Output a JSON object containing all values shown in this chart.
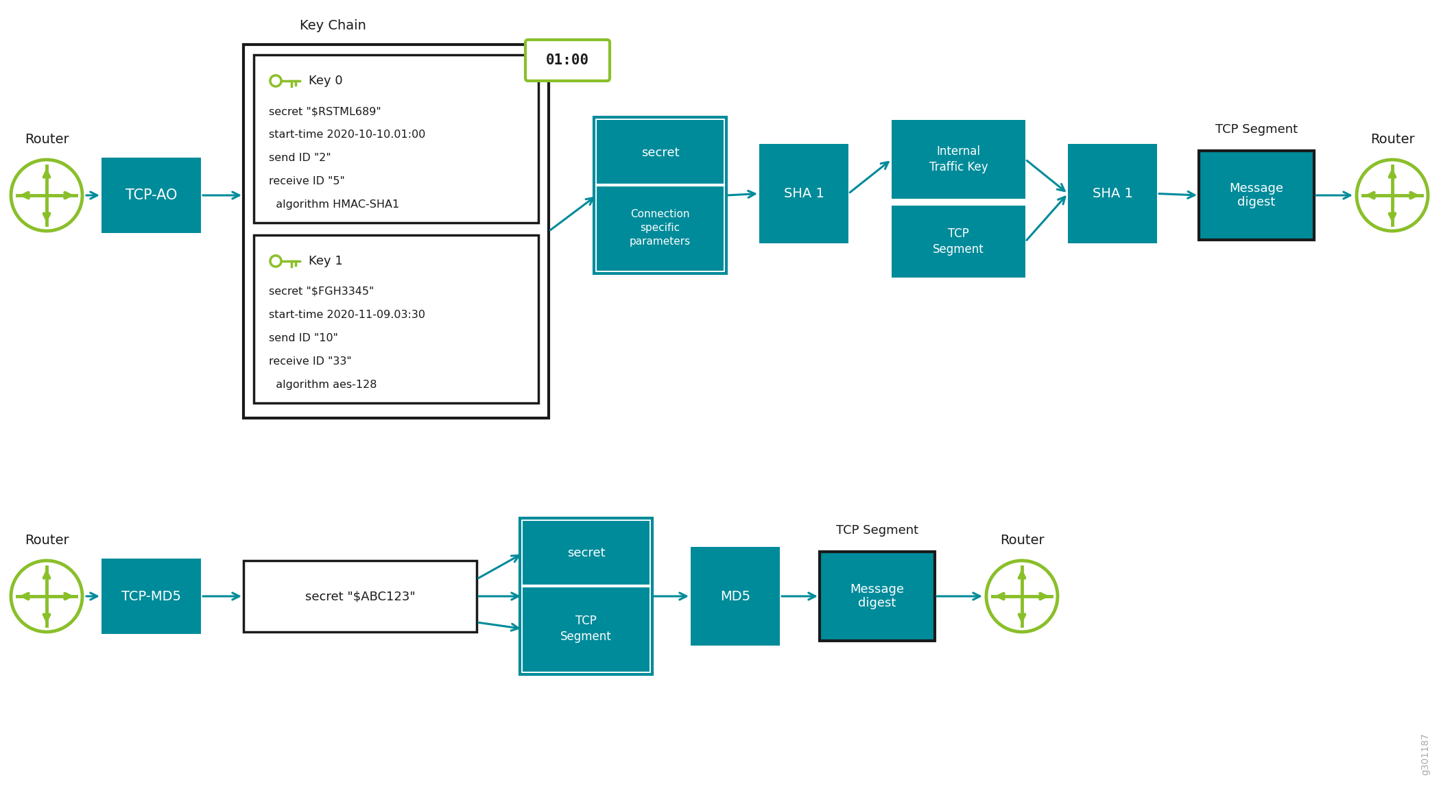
{
  "bg_color": "#ffffff",
  "teal": "#008B9A",
  "green_light": "#8ABF2A",
  "arrow_color": "#008B9A",
  "text_white": "#ffffff",
  "text_dark": "#1a1a1a",
  "timer_border_color": "#8ABF2A",
  "timer_text": "01:00",
  "key_chain_label": "Key Chain",
  "router_label": "Router",
  "tcp_ao_label": "TCP-AO",
  "tcp_md5_label": "TCP-MD5",
  "sha1_label": "SHA 1",
  "internal_traffic_key_label": "Internal\nTraffic Key",
  "tcp_segment_label": "TCP\nSegment",
  "tcp_segment_top": "TCP Segment",
  "message_digest_label": "Message\ndigest",
  "md5_secret_label": "secret \"$ABC123\"",
  "md5_label": "MD5",
  "tcp_seg_label_md5": "TCP Segment",
  "msg_digest_md5": "Message\ndigest",
  "watermark": "g301187",
  "figsize": [
    21.01,
    11.6
  ],
  "dpi": 100,
  "key0_lines": [
    "Key 0",
    "secret \"$RSTML689\"",
    "start-time 2020-10-10.01:00",
    "send ID \"2\"",
    "receive ID \"5\"",
    "  algorithm HMAC-SHA1"
  ],
  "key1_lines": [
    "Key 1",
    "secret \"$FGH3345\"",
    "start-time 2020-11-09.03:30",
    "send ID \"10\"",
    "receive ID \"33\"",
    "  algorithm aes-128"
  ]
}
